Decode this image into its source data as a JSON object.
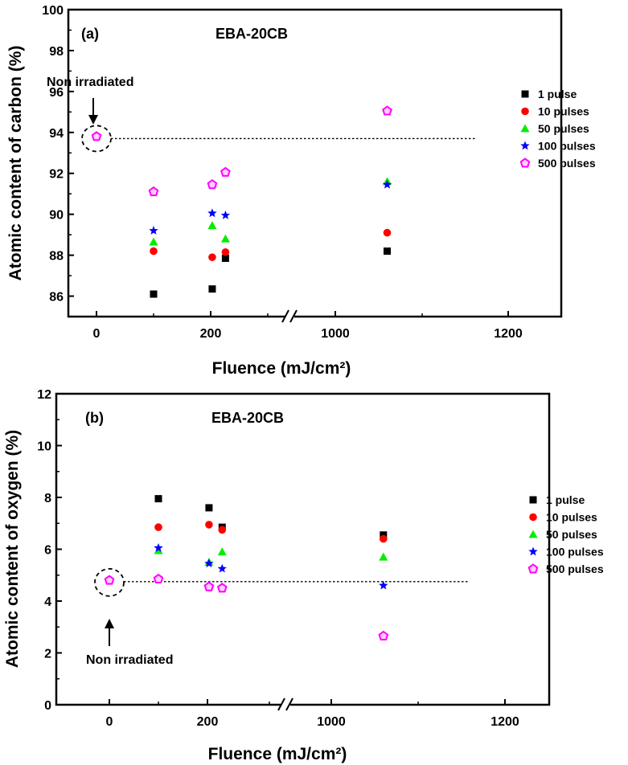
{
  "chart_data": [
    {
      "type": "scatter",
      "panel_label": "(a)",
      "title": "EBA-20CB",
      "xlabel": "Fluence (mJ/cm²)",
      "ylabel": "Atomic content of carbon (%)",
      "ylim": [
        85,
        100
      ],
      "yticks": [
        "86",
        "88",
        "90",
        "92",
        "94",
        "96",
        "98",
        "100"
      ],
      "xticks": [
        "0",
        "200",
        "1000",
        "1200"
      ],
      "x_axis_break": true,
      "reference_line": 93.7,
      "annotation": "Non irradiated",
      "legend_position": "right",
      "series": [
        {
          "name": "1 pulse",
          "marker": "square",
          "color": "#000000",
          "points": [
            {
              "x": 100,
              "y": 86.1
            },
            {
              "x": 210,
              "y": 86.35
            },
            {
              "x": 295,
              "y": 87.85
            },
            {
              "x": 1060,
              "y": 88.2
            }
          ]
        },
        {
          "name": "10 pulses",
          "marker": "circle",
          "color": "#ff0000",
          "points": [
            {
              "x": 100,
              "y": 88.2
            },
            {
              "x": 210,
              "y": 87.9
            },
            {
              "x": 295,
              "y": 88.15
            },
            {
              "x": 1060,
              "y": 89.1
            }
          ]
        },
        {
          "name": "50 pulses",
          "marker": "triangle",
          "color": "#00ee00",
          "points": [
            {
              "x": 100,
              "y": 88.65
            },
            {
              "x": 210,
              "y": 89.45
            },
            {
              "x": 295,
              "y": 88.8
            },
            {
              "x": 1060,
              "y": 91.6
            }
          ]
        },
        {
          "name": "100 pulses",
          "marker": "star",
          "color": "#0000ff",
          "points": [
            {
              "x": 100,
              "y": 89.2
            },
            {
              "x": 210,
              "y": 90.05
            },
            {
              "x": 295,
              "y": 89.95
            },
            {
              "x": 1060,
              "y": 91.45
            }
          ]
        },
        {
          "name": "500 pulses",
          "marker": "pentagon",
          "color": "#ff00ff",
          "points": [
            {
              "x": 0,
              "y": 93.8
            },
            {
              "x": 100,
              "y": 91.1
            },
            {
              "x": 210,
              "y": 91.45
            },
            {
              "x": 295,
              "y": 92.05
            },
            {
              "x": 1060,
              "y": 95.05
            }
          ]
        }
      ]
    },
    {
      "type": "scatter",
      "panel_label": "(b)",
      "title": "EBA-20CB",
      "xlabel": "Fluence (mJ/cm²)",
      "ylabel": "Atomic content of oxygen (%)",
      "ylim": [
        0,
        12
      ],
      "yticks": [
        "0",
        "2",
        "4",
        "6",
        "8",
        "10",
        "12"
      ],
      "xticks": [
        "0",
        "200",
        "1000",
        "1200"
      ],
      "x_axis_break": true,
      "reference_line": 4.75,
      "annotation": "Non irradiated",
      "legend_position": "right",
      "series": [
        {
          "name": "1 pulse",
          "marker": "square",
          "color": "#000000",
          "points": [
            {
              "x": 100,
              "y": 7.95
            },
            {
              "x": 210,
              "y": 7.6
            },
            {
              "x": 295,
              "y": 6.85
            },
            {
              "x": 1060,
              "y": 6.55
            }
          ]
        },
        {
          "name": "10 pulses",
          "marker": "circle",
          "color": "#ff0000",
          "points": [
            {
              "x": 100,
              "y": 6.85
            },
            {
              "x": 210,
              "y": 6.95
            },
            {
              "x": 295,
              "y": 6.75
            },
            {
              "x": 1060,
              "y": 6.4
            }
          ]
        },
        {
          "name": "50 pulses",
          "marker": "triangle",
          "color": "#00ee00",
          "points": [
            {
              "x": 100,
              "y": 5.95
            },
            {
              "x": 210,
              "y": 5.5
            },
            {
              "x": 295,
              "y": 5.9
            },
            {
              "x": 1060,
              "y": 5.7
            }
          ]
        },
        {
          "name": "100 pulses",
          "marker": "star",
          "color": "#0000ff",
          "points": [
            {
              "x": 100,
              "y": 6.05
            },
            {
              "x": 210,
              "y": 5.45
            },
            {
              "x": 295,
              "y": 5.25
            },
            {
              "x": 1060,
              "y": 4.6
            }
          ]
        },
        {
          "name": "500 pulses",
          "marker": "pentagon",
          "color": "#ff00ff",
          "points": [
            {
              "x": 0,
              "y": 4.8
            },
            {
              "x": 100,
              "y": 4.85
            },
            {
              "x": 210,
              "y": 4.55
            },
            {
              "x": 295,
              "y": 4.5
            },
            {
              "x": 1060,
              "y": 2.65
            }
          ]
        }
      ]
    }
  ]
}
